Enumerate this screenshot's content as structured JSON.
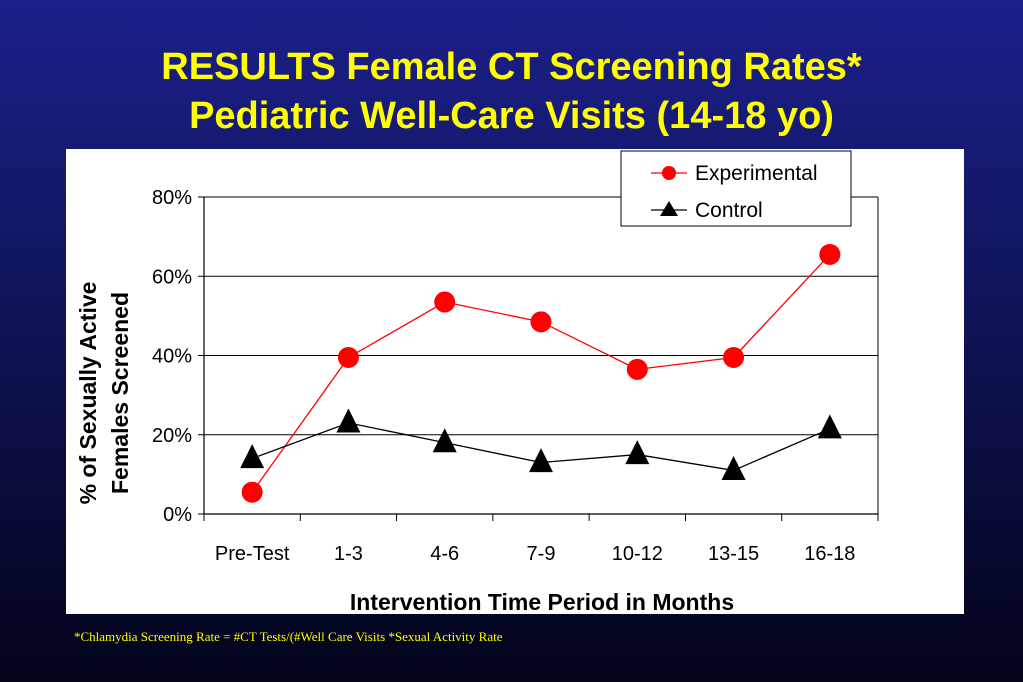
{
  "title": {
    "line1": "RESULTS Female CT Screening Rates*",
    "line2": "Pediatric Well-Care Visits (14-18 yo)"
  },
  "footnote": "*Chlamydia Screening Rate = #CT Tests/(#Well Care Visits *Sexual Activity Rate",
  "chart_data": {
    "type": "line",
    "categories": [
      "Pre-Test",
      "1-3",
      "4-6",
      "7-9",
      "10-12",
      "13-15",
      "16-18"
    ],
    "series": [
      {
        "name": "Experimental",
        "marker": "circle",
        "color": "#ff0000",
        "values": [
          5.5,
          39.5,
          53.5,
          48.5,
          36.5,
          39.5,
          65.5
        ]
      },
      {
        "name": "Control",
        "marker": "triangle",
        "color": "#000000",
        "values": [
          14,
          23,
          18,
          13,
          15,
          11,
          21.5
        ]
      }
    ],
    "ylim": [
      0,
      80
    ],
    "yticks": [
      0,
      20,
      40,
      60,
      80
    ],
    "ytick_labels": [
      "0%",
      "20%",
      "40%",
      "60%",
      "80%"
    ],
    "xlabel": "Intervention Time Period in Months",
    "ylabel_line1": "% of Sexually Active",
    "ylabel_line2": "Females Screened",
    "grid": true,
    "legend_position": "top-right"
  }
}
